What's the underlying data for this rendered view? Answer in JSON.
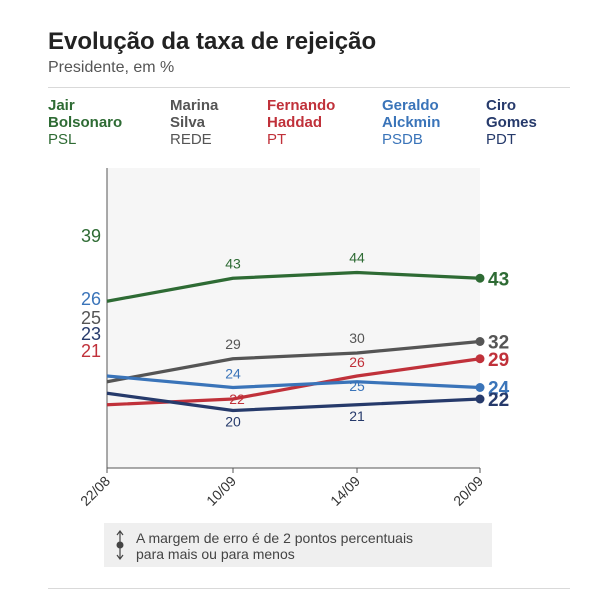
{
  "header": {
    "title": "Evolução da taxa de rejeição",
    "subtitle": "Presidente, em %"
  },
  "note": {
    "text_line1": "A margem de erro é de 2 pontos percentuais",
    "text_line2": "para mais ou para menos"
  },
  "chart_data": {
    "type": "line",
    "title": "Evolução da taxa de rejeição",
    "subtitle": "Presidente, em %",
    "x": [
      "22/08",
      "10/09",
      "14/09",
      "20/09"
    ],
    "ylim": [
      0,
      50
    ],
    "grid": false,
    "legend_position": "top",
    "series": [
      {
        "name": "Jair Bolsonaro",
        "party": "PSL",
        "color": "#2e6b34",
        "values": [
          39,
          43,
          44,
          43
        ]
      },
      {
        "name": "Marina Silva",
        "party": "REDE",
        "color": "#555555",
        "values": [
          25,
          29,
          30,
          32
        ]
      },
      {
        "name": "Fernando Haddad",
        "party": "PT",
        "color": "#c0313a",
        "values": [
          21,
          22,
          26,
          29
        ]
      },
      {
        "name": "Geraldo Alckmin",
        "party": "PSDB",
        "color": "#3a74b9",
        "values": [
          26,
          24,
          25,
          24
        ]
      },
      {
        "name": "Ciro Gomes",
        "party": "PDT",
        "color": "#263a6b",
        "values": [
          23,
          20,
          21,
          22
        ]
      }
    ]
  }
}
